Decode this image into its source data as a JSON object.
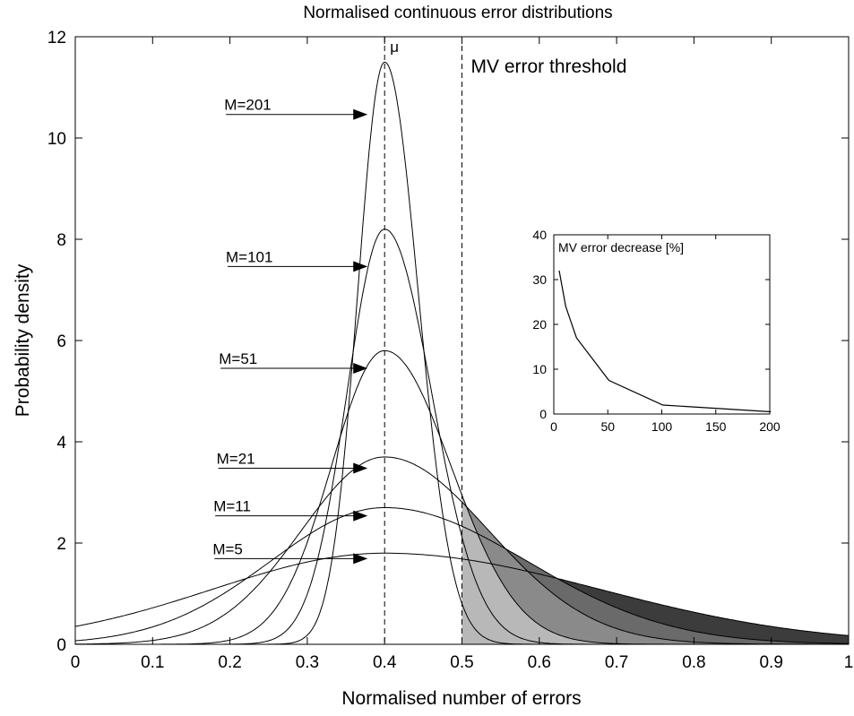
{
  "chart_data": [
    {
      "type": "line",
      "title": "Normalised continuous error distributions",
      "xlabel": "Normalised number of errors",
      "ylabel": "Probability density",
      "xlim": [
        0,
        1
      ],
      "ylim": [
        0,
        12
      ],
      "xticks": [
        "0",
        "0.1",
        "0.2",
        "0.3",
        "0.4",
        "0.5",
        "0.6",
        "0.7",
        "0.8",
        "0.9",
        "1"
      ],
      "yticks": [
        "0",
        "2",
        "4",
        "6",
        "8",
        "10",
        "12"
      ],
      "grid": false,
      "mean": 0.4,
      "mean_label": "μ",
      "threshold": 0.5,
      "threshold_label": "MV error threshold",
      "shading": "tail area x > 0.5 filled in grey for each curve",
      "shade_colors": [
        "#b8b8b8",
        "#8a8a8a",
        "#6a6a6a",
        "#3c3c3c"
      ],
      "series": [
        {
          "name": "M=5",
          "peak": 1.8,
          "label": "M=5"
        },
        {
          "name": "M=11",
          "peak": 2.7,
          "label": "M=11"
        },
        {
          "name": "M=21",
          "peak": 3.7,
          "label": "M=21"
        },
        {
          "name": "M=51",
          "peak": 5.8,
          "label": "M=51"
        },
        {
          "name": "M=101",
          "peak": 8.2,
          "label": "M=101"
        },
        {
          "name": "M=201",
          "peak": 11.5,
          "label": "M=201"
        }
      ]
    },
    {
      "type": "line",
      "title": "MV error decrease [%]",
      "xlim": [
        0,
        200
      ],
      "ylim": [
        0,
        40
      ],
      "xticks": [
        "0",
        "50",
        "100",
        "150",
        "200"
      ],
      "yticks": [
        "0",
        "10",
        "20",
        "30",
        "40"
      ],
      "x": [
        5,
        11,
        21,
        51,
        101,
        201
      ],
      "y": [
        32,
        24,
        17,
        7.5,
        2,
        0.5
      ]
    }
  ]
}
